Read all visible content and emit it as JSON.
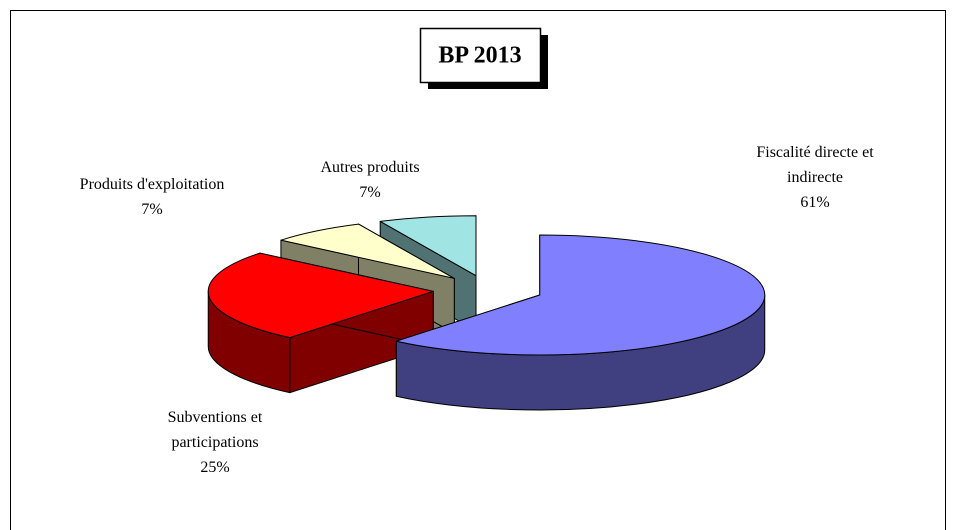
{
  "chart_data": {
    "type": "pie",
    "title": "BP 2013",
    "categories": [
      "Fiscalité directe et indirecte",
      "Subventions et participations",
      "Produits d'exploitation",
      "Autres produits"
    ],
    "values": [
      61,
      25,
      7,
      7
    ],
    "value_labels": [
      "61%",
      "25%",
      "7%",
      "7%"
    ],
    "colors": [
      "#8080ff",
      "#ff0000",
      "#ffffcc",
      "#a0e4e4"
    ]
  }
}
